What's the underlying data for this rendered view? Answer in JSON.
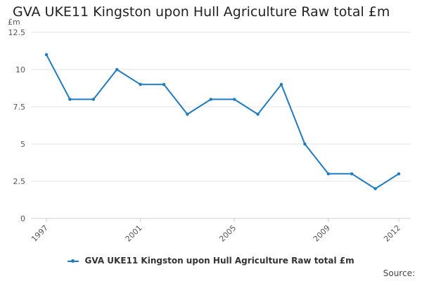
{
  "title": "GVA UKE11 Kingston upon Hull Agriculture Raw total £m",
  "source_label": "Source:",
  "chart_data": {
    "type": "line",
    "title": "GVA UKE11 Kingston upon Hull Agriculture Raw total £m",
    "ylabel": "£m",
    "xlabel": "",
    "x": [
      1997,
      1998,
      1999,
      2000,
      2001,
      2002,
      2003,
      2004,
      2005,
      2006,
      2007,
      2008,
      2009,
      2010,
      2011,
      2012
    ],
    "series": [
      {
        "name": "GVA UKE11 Kingston upon Hull Agriculture Raw total £m",
        "values": [
          11,
          8,
          8,
          10,
          9,
          9,
          7,
          8,
          8,
          7,
          9,
          5,
          3,
          3,
          2,
          3
        ],
        "color": "#1f7bbf"
      }
    ],
    "xlim": [
      1997,
      2012
    ],
    "ylim": [
      0,
      12.5
    ],
    "x_ticks": [
      "1997",
      "2001",
      "2005",
      "2009",
      "2012"
    ],
    "y_ticks": [
      "0",
      "2.5",
      "5",
      "7.5",
      "10",
      "12.5"
    ],
    "grid": true,
    "legend": "bottom-center"
  }
}
